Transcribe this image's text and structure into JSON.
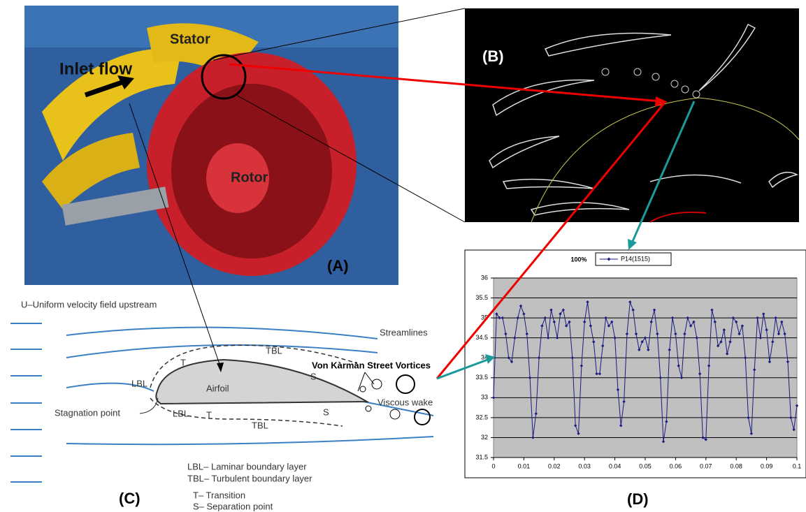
{
  "photo": {
    "stator": "Stator",
    "inlet_flow": "Inlet flow",
    "rotor": "Rotor",
    "label": "(A)"
  },
  "cfd": {
    "label": "(B)"
  },
  "airfoil": {
    "upstream": "U–Uniform velocity field upstream",
    "streamlines": "Streamlines",
    "tbl_top": "TBL",
    "t_top": "T",
    "lbl_top": "LBL",
    "body": "Airfoil",
    "s_top": "S",
    "vortices": "Von Kàrmàn Street Vortices",
    "wake": "Viscous wake",
    "stagnation": "Stagnation point",
    "lbl_bottom": "LBL",
    "t_bottom": "T",
    "tbl_bottom": "TBL",
    "s_bottom": "S",
    "legend": [
      "LBL– Laminar boundary layer",
      "TBL– Turbulent boundary layer",
      "T– Transition",
      "S– Separation point"
    ],
    "label": "(C)"
  },
  "chart_panel": {
    "label": "(D)"
  },
  "chart_data": {
    "type": "line",
    "title": "100%",
    "x": [
      0,
      0.001,
      0.002,
      0.003,
      0.004,
      0.005,
      0.006,
      0.007,
      0.008,
      0.009,
      0.01,
      0.011,
      0.012,
      0.013,
      0.014,
      0.015,
      0.016,
      0.017,
      0.018,
      0.019,
      0.02,
      0.021,
      0.022,
      0.023,
      0.024,
      0.025,
      0.026,
      0.027,
      0.028,
      0.029,
      0.03,
      0.031,
      0.032,
      0.033,
      0.034,
      0.035,
      0.036,
      0.037,
      0.038,
      0.039,
      0.04,
      0.041,
      0.042,
      0.043,
      0.044,
      0.045,
      0.046,
      0.047,
      0.048,
      0.049,
      0.05,
      0.051,
      0.052,
      0.053,
      0.054,
      0.055,
      0.056,
      0.057,
      0.058,
      0.059,
      0.06,
      0.061,
      0.062,
      0.063,
      0.064,
      0.065,
      0.066,
      0.067,
      0.068,
      0.069,
      0.07,
      0.071,
      0.072,
      0.073,
      0.074,
      0.075,
      0.076,
      0.077,
      0.078,
      0.079,
      0.08,
      0.081,
      0.082,
      0.083,
      0.084,
      0.085,
      0.086,
      0.087,
      0.088,
      0.089,
      0.09,
      0.091,
      0.092,
      0.093,
      0.094,
      0.095,
      0.096,
      0.097,
      0.098,
      0.099,
      0.1
    ],
    "series": [
      {
        "name": "P14(1515)",
        "color": "#1a1a80",
        "values": [
          33.0,
          35.1,
          35.0,
          35.0,
          34.6,
          34.0,
          33.9,
          34.5,
          35.0,
          35.3,
          35.1,
          34.6,
          33.5,
          32.0,
          32.6,
          34.0,
          34.8,
          35.0,
          34.5,
          35.2,
          34.9,
          34.5,
          35.1,
          35.2,
          34.8,
          34.9,
          34.0,
          32.3,
          32.1,
          33.8,
          34.9,
          35.4,
          34.8,
          34.4,
          33.6,
          33.6,
          34.3,
          35.0,
          34.8,
          34.9,
          34.5,
          33.2,
          32.3,
          32.9,
          34.6,
          35.4,
          35.2,
          34.6,
          34.2,
          34.4,
          34.5,
          34.2,
          34.9,
          35.2,
          34.6,
          33.5,
          31.9,
          32.4,
          34.2,
          35.0,
          34.6,
          33.8,
          33.5,
          34.6,
          35.0,
          34.8,
          34.9,
          34.5,
          33.6,
          32.0,
          31.95,
          33.8,
          35.2,
          34.9,
          34.3,
          34.4,
          34.7,
          34.1,
          34.4,
          35.0,
          34.9,
          34.6,
          34.8,
          34.0,
          32.5,
          32.1,
          33.7,
          35.0,
          34.5,
          35.1,
          34.7,
          33.9,
          34.4,
          35.0,
          34.6,
          34.9,
          34.6,
          33.9,
          32.5,
          32.2,
          32.8
        ]
      }
    ],
    "xlim": [
      0,
      0.1
    ],
    "xticks": [
      0,
      0.01,
      0.02,
      0.03,
      0.04,
      0.05,
      0.06,
      0.07,
      0.08,
      0.09,
      0.1
    ],
    "ylim": [
      31.5,
      36
    ],
    "yticks": [
      31.5,
      32,
      32.5,
      33,
      33.5,
      34,
      34.5,
      35,
      35.5,
      36
    ],
    "grid": true,
    "plot_background": "#c0c0c0"
  }
}
